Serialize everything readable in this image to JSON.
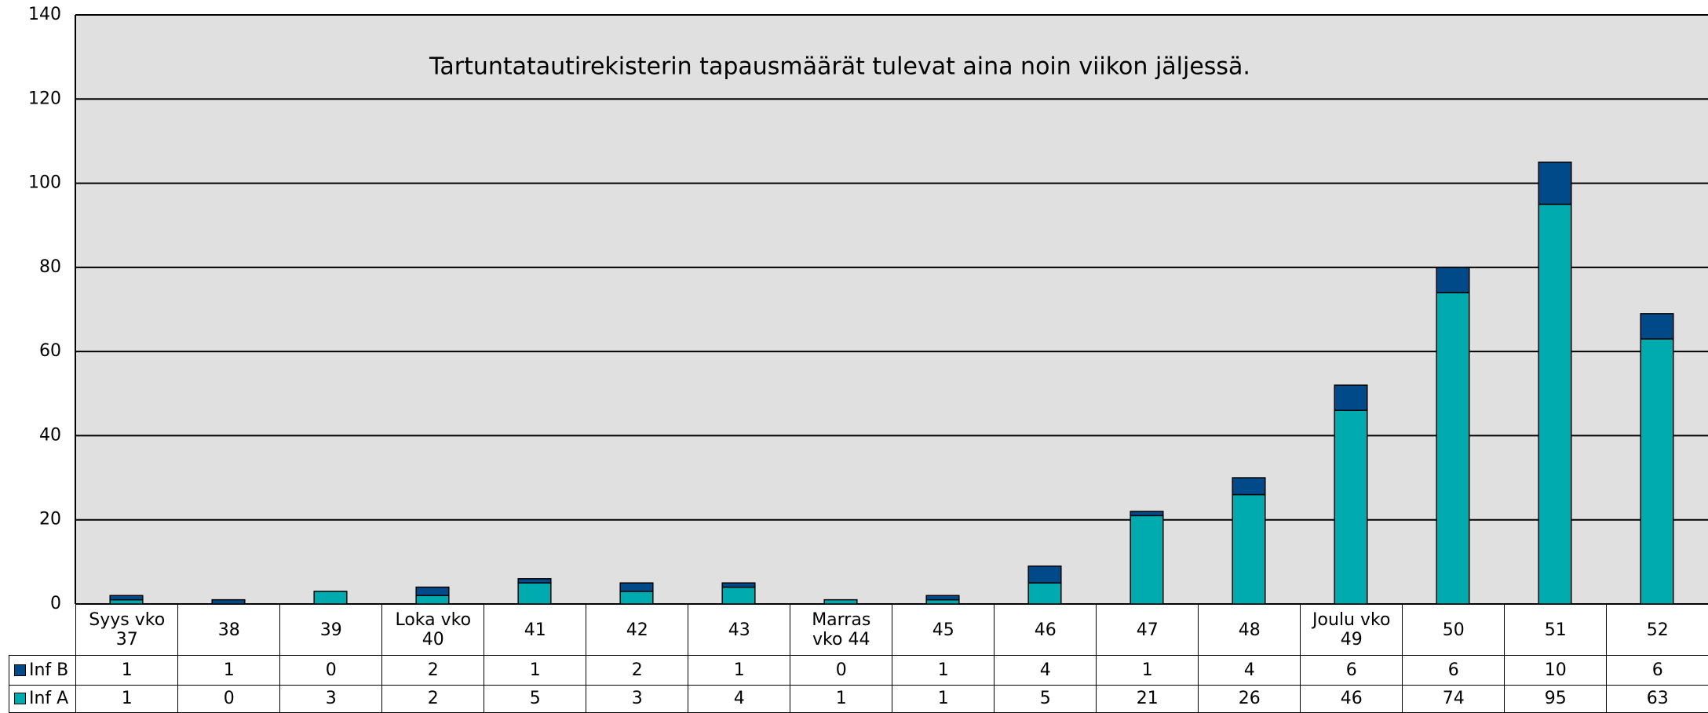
{
  "chart_data": {
    "type": "bar",
    "stacked": true,
    "annotation": "Tartuntatautirekisterin tapausmäärät tulevat aina noin viikon jäljessä.",
    "categories": [
      "Syys vko 37",
      "38",
      "39",
      "Loka vko 40",
      "41",
      "42",
      "43",
      "Marras vko 44",
      "45",
      "46",
      "47",
      "48",
      "Joulu vko 49",
      "50",
      "51",
      "52"
    ],
    "series": [
      {
        "name": "Inf A",
        "color": "#00abb0",
        "values": [
          1,
          0,
          3,
          2,
          5,
          3,
          4,
          1,
          1,
          5,
          21,
          26,
          46,
          74,
          95,
          63
        ]
      },
      {
        "name": "Inf B",
        "color": "#004a8a",
        "values": [
          1,
          1,
          0,
          2,
          1,
          2,
          1,
          0,
          1,
          4,
          1,
          4,
          6,
          6,
          10,
          6
        ]
      }
    ],
    "ylim": [
      0,
      140
    ],
    "yticks": [
      0,
      20,
      40,
      60,
      80,
      100,
      120,
      140
    ],
    "grid": true
  }
}
